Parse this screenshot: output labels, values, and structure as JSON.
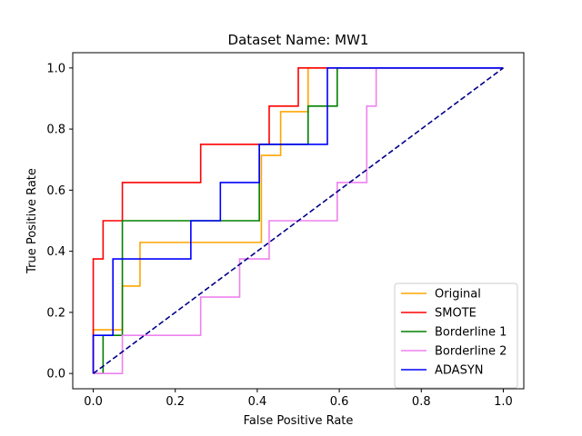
{
  "chart_data": {
    "type": "line",
    "title": "Dataset Name: MW1",
    "xlabel": "False Positive Rate",
    "ylabel": "True Positive Rate",
    "xlim": [
      -0.05,
      1.05
    ],
    "ylim": [
      -0.05,
      1.05
    ],
    "xticks": [
      "0.0",
      "0.2",
      "0.4",
      "0.6",
      "0.8",
      "1.0"
    ],
    "yticks": [
      "0.0",
      "0.2",
      "0.4",
      "0.6",
      "0.8",
      "1.0"
    ],
    "grid": false,
    "legend_position": "lower-right",
    "series": [
      {
        "name": "Original",
        "color": "#ffa500",
        "style": "solid",
        "x": [
          0,
          0,
          0.024,
          0.024,
          0.071,
          0.071,
          0.114,
          0.114,
          0.41,
          0.41,
          0.457,
          0.457,
          0.524,
          0.524,
          1.0
        ],
        "y": [
          0,
          0.143,
          0.143,
          0.143,
          0.143,
          0.286,
          0.286,
          0.429,
          0.429,
          0.714,
          0.714,
          0.857,
          0.857,
          1.0,
          1.0
        ]
      },
      {
        "name": "SMOTE",
        "color": "#ff0000",
        "style": "solid",
        "x": [
          0,
          0,
          0.024,
          0.024,
          0.071,
          0.071,
          0.262,
          0.262,
          0.429,
          0.429,
          0.5,
          0.5,
          1.0
        ],
        "y": [
          0,
          0.375,
          0.375,
          0.5,
          0.5,
          0.625,
          0.625,
          0.75,
          0.75,
          0.875,
          0.875,
          1.0,
          1.0
        ]
      },
      {
        "name": "Borderline 1",
        "color": "#008000",
        "style": "solid",
        "x": [
          0,
          0.024,
          0.024,
          0.071,
          0.071,
          0.405,
          0.405,
          0.524,
          0.524,
          0.595,
          0.595,
          1.0
        ],
        "y": [
          0,
          0,
          0.125,
          0.125,
          0.5,
          0.5,
          0.75,
          0.75,
          0.875,
          0.875,
          1.0,
          1.0
        ]
      },
      {
        "name": "Borderline 2",
        "color": "#ee82ee",
        "style": "solid",
        "x": [
          0,
          0.071,
          0.071,
          0.262,
          0.262,
          0.357,
          0.357,
          0.429,
          0.429,
          0.595,
          0.595,
          0.667,
          0.667,
          0.69,
          0.69,
          1.0
        ],
        "y": [
          0,
          0,
          0.125,
          0.125,
          0.25,
          0.25,
          0.375,
          0.375,
          0.5,
          0.5,
          0.625,
          0.625,
          0.875,
          0.875,
          1.0,
          1.0
        ]
      },
      {
        "name": "ADASYN",
        "color": "#0000ff",
        "style": "solid",
        "x": [
          0,
          0,
          0.048,
          0.048,
          0.238,
          0.238,
          0.31,
          0.31,
          0.405,
          0.405,
          0.571,
          0.571,
          1.0
        ],
        "y": [
          0,
          0.125,
          0.125,
          0.375,
          0.375,
          0.5,
          0.5,
          0.625,
          0.625,
          0.75,
          0.75,
          1.0,
          1.0
        ]
      },
      {
        "color": "#00008b",
        "style": "dashed",
        "x": [
          0,
          1
        ],
        "y": [
          0,
          1
        ]
      }
    ]
  }
}
